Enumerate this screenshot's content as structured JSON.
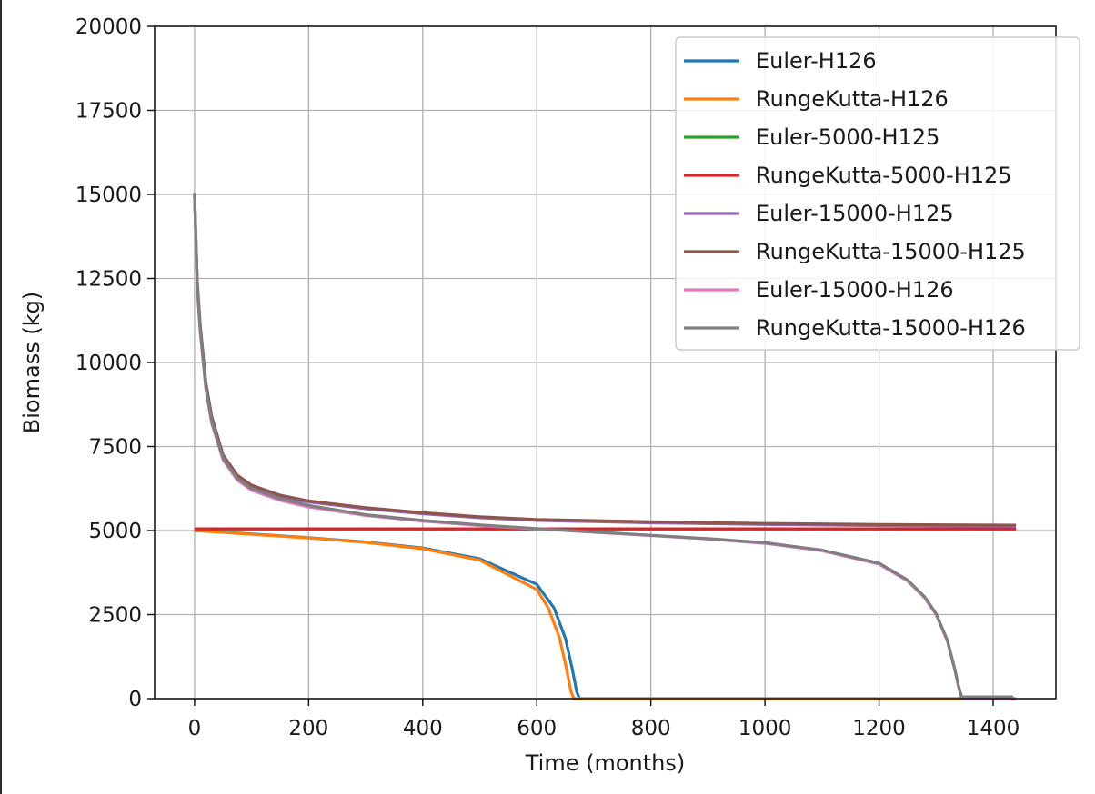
{
  "chart_data": {
    "type": "line",
    "title": "",
    "xlabel": "Time (months)",
    "ylabel": "Biomass (kg)",
    "xlim": [
      -70,
      1510
    ],
    "ylim": [
      0,
      20000
    ],
    "xticks": [
      0,
      200,
      400,
      600,
      800,
      1000,
      1200,
      1400
    ],
    "yticks": [
      0,
      2500,
      5000,
      7500,
      10000,
      12500,
      15000,
      17500,
      20000
    ],
    "grid": true,
    "legend_position": "top-right",
    "series": [
      {
        "name": "Euler-H126",
        "color": "#1f77b4",
        "x": [
          0,
          100,
          200,
          300,
          400,
          500,
          600,
          630,
          650,
          662,
          670,
          675,
          1440
        ],
        "y": [
          5000,
          4900,
          4790,
          4660,
          4480,
          4160,
          3400,
          2700,
          1800,
          900,
          200,
          0,
          0
        ]
      },
      {
        "name": "RungeKutta-H126",
        "color": "#ff7f0e",
        "x": [
          0,
          100,
          200,
          300,
          400,
          500,
          600,
          620,
          640,
          652,
          660,
          665,
          1440
        ],
        "y": [
          5000,
          4890,
          4780,
          4650,
          4460,
          4120,
          3250,
          2700,
          1800,
          900,
          200,
          0,
          0
        ]
      },
      {
        "name": "Euler-5000-H125",
        "color": "#2ca02c",
        "x": [
          0,
          1440
        ],
        "y": [
          5050,
          5050
        ]
      },
      {
        "name": "RungeKutta-5000-H125",
        "color": "#d62728",
        "x": [
          0,
          1440
        ],
        "y": [
          5050,
          5050
        ]
      },
      {
        "name": "Euler-15000-H125",
        "color": "#9467bd",
        "x": [
          0,
          5,
          10,
          20,
          30,
          50,
          75,
          100,
          150,
          200,
          300,
          400,
          500,
          600,
          800,
          1000,
          1200,
          1440
        ],
        "y": [
          15000,
          12300,
          11000,
          9300,
          8300,
          7200,
          6600,
          6300,
          6000,
          5850,
          5650,
          5500,
          5380,
          5300,
          5230,
          5180,
          5150,
          5130
        ]
      },
      {
        "name": "RungeKutta-15000-H125",
        "color": "#8c564b",
        "x": [
          0,
          5,
          10,
          20,
          30,
          50,
          75,
          100,
          150,
          200,
          300,
          400,
          500,
          600,
          800,
          1000,
          1200,
          1440
        ],
        "y": [
          15000,
          12400,
          11100,
          9400,
          8400,
          7250,
          6650,
          6350,
          6050,
          5880,
          5680,
          5530,
          5410,
          5330,
          5260,
          5210,
          5180,
          5160
        ]
      },
      {
        "name": "Euler-15000-H126",
        "color": "#e377c2",
        "x": [
          0,
          5,
          10,
          20,
          30,
          50,
          75,
          100,
          150,
          200,
          300,
          400,
          500,
          600,
          700,
          800,
          900,
          1000,
          1100,
          1200,
          1250,
          1280,
          1300,
          1320,
          1332,
          1340,
          1345,
          1440
        ],
        "y": [
          15000,
          12200,
          10900,
          9200,
          8200,
          7100,
          6500,
          6200,
          5900,
          5700,
          5450,
          5280,
          5150,
          5050,
          4950,
          4850,
          4750,
          4620,
          4400,
          4000,
          3500,
          3000,
          2500,
          1700,
          900,
          300,
          0,
          0
        ]
      },
      {
        "name": "RungeKutta-15000-H126",
        "color": "#7f7f7f",
        "x": [
          0,
          5,
          10,
          20,
          30,
          50,
          75,
          100,
          150,
          200,
          300,
          400,
          500,
          600,
          700,
          800,
          900,
          1000,
          1100,
          1200,
          1250,
          1280,
          1300,
          1320,
          1332,
          1340,
          1345,
          1435
        ],
        "y": [
          15050,
          12250,
          10950,
          9250,
          8250,
          7150,
          6550,
          6250,
          5950,
          5750,
          5470,
          5300,
          5170,
          5060,
          4960,
          4860,
          4760,
          4640,
          4420,
          4030,
          3530,
          3030,
          2530,
          1730,
          930,
          330,
          50,
          50
        ]
      }
    ]
  }
}
